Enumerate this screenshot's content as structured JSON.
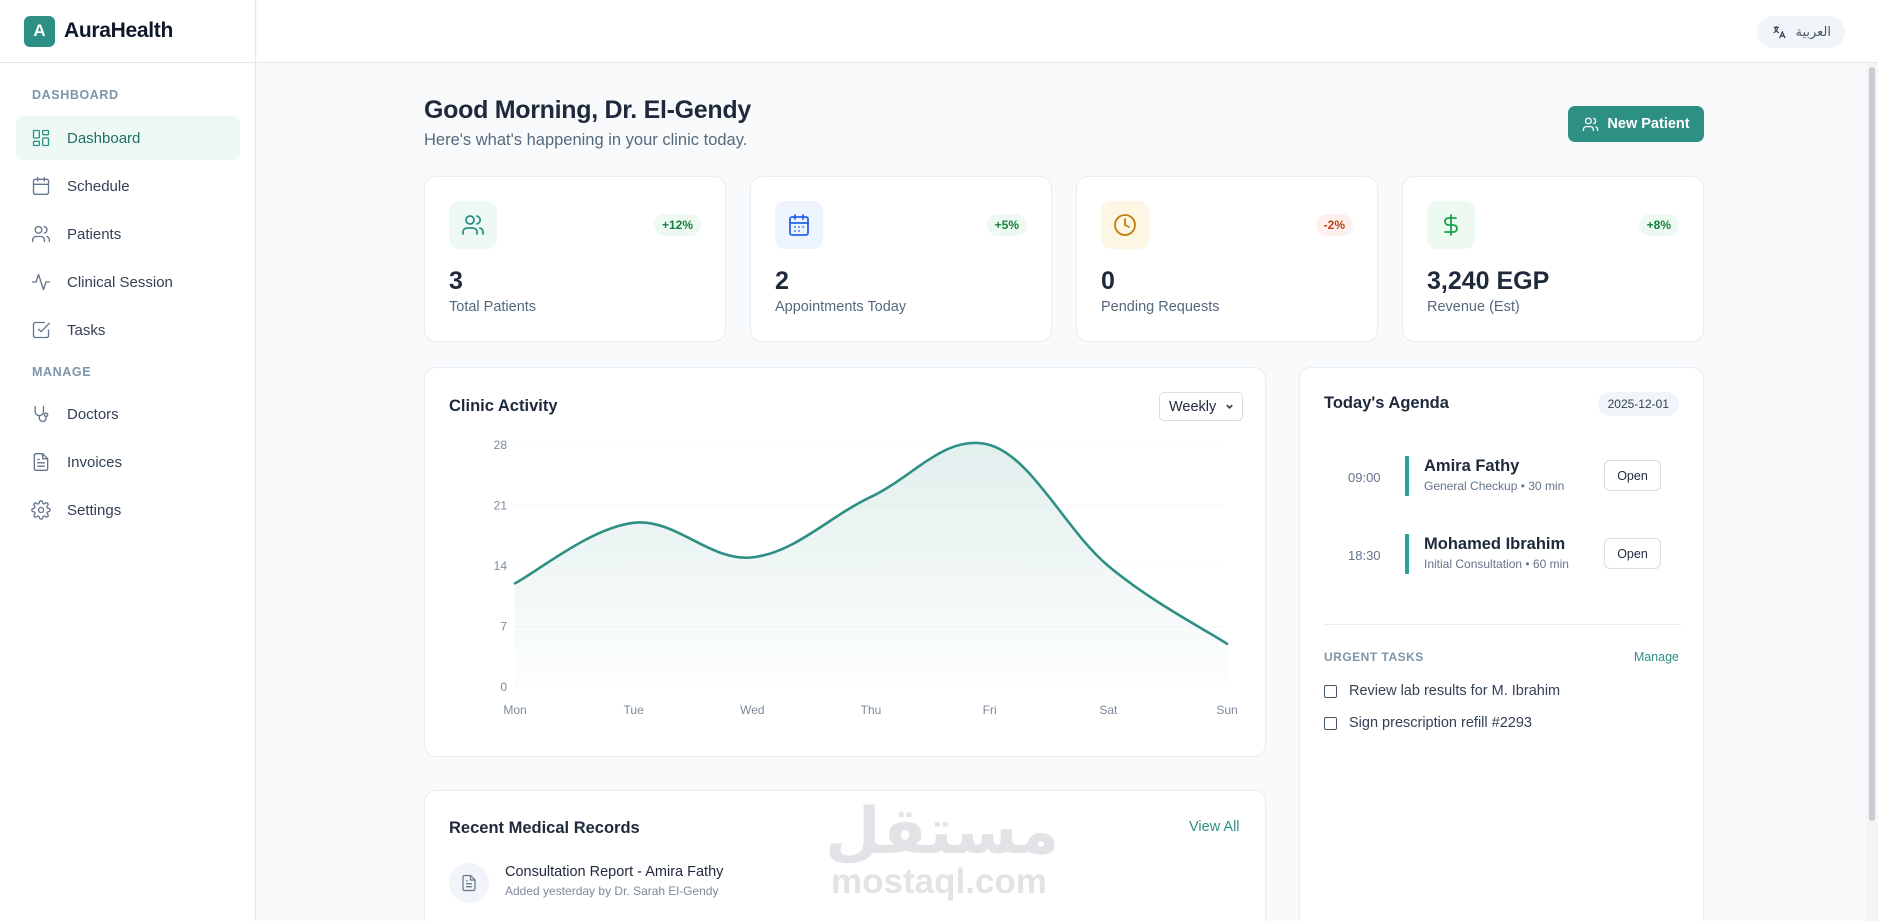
{
  "brand": {
    "logo_letter": "A",
    "name": "AuraHealth",
    "accent": "#2e8f84"
  },
  "sidebar": {
    "sections": [
      {
        "title": "DASHBOARD"
      },
      {
        "title": "MANAGE"
      }
    ],
    "items": [
      {
        "label": "Dashboard",
        "icon": "dashboard-grid-icon",
        "active": true
      },
      {
        "label": "Schedule",
        "icon": "calendar-icon"
      },
      {
        "label": "Patients",
        "icon": "users-icon"
      },
      {
        "label": "Clinical Session",
        "icon": "activity-icon"
      },
      {
        "label": "Tasks",
        "icon": "checkbox-icon"
      },
      {
        "label": "Doctors",
        "icon": "stethoscope-icon"
      },
      {
        "label": "Invoices",
        "icon": "file-text-icon"
      },
      {
        "label": "Settings",
        "icon": "gear-icon"
      }
    ]
  },
  "topbar": {
    "language_label": "العربية",
    "language_icon": "translate-icon"
  },
  "header": {
    "greeting": "Good Morning, Dr. El-Gendy",
    "subtitle": "Here's what's happening in your clinic today.",
    "new_patient_label": "New Patient"
  },
  "stats": [
    {
      "value": "3",
      "label": "Total Patients",
      "change": "+12%",
      "icon": "users-icon",
      "trend": "up"
    },
    {
      "value": "2",
      "label": "Appointments Today",
      "change": "+5%",
      "icon": "calendar-icon",
      "trend": "up"
    },
    {
      "value": "0",
      "label": "Pending Requests",
      "change": "-2%",
      "icon": "clock-icon",
      "trend": "down"
    },
    {
      "value": "3,240 EGP",
      "label": "Revenue (Est)",
      "change": "+8%",
      "icon": "dollar-icon",
      "trend": "up"
    }
  ],
  "activity": {
    "title": "Clinic Activity",
    "period": "Weekly"
  },
  "chart_data": {
    "type": "area",
    "title": "",
    "xlabel": "",
    "ylabel": "",
    "categories": [
      "Mon",
      "Tue",
      "Wed",
      "Thu",
      "Fri",
      "Sat",
      "Sun"
    ],
    "values": [
      12,
      19,
      15,
      22,
      28,
      14,
      5
    ],
    "yticks": [
      "0",
      "7",
      "14",
      "21",
      "28"
    ],
    "ylim": [
      0,
      28
    ],
    "grid": true,
    "color": "#2e8f84"
  },
  "records": {
    "title": "Recent Medical Records",
    "view_all_label": "View All",
    "items": [
      {
        "title": "Consultation Report - Amira Fathy",
        "subtitle": "Added yesterday by Dr. Sarah El-Gendy"
      }
    ]
  },
  "agenda": {
    "title": "Today's Agenda",
    "date": "2025-12-01",
    "appointments": [
      {
        "time": "09:00",
        "name": "Amira Fathy",
        "detail": "General Checkup • 30 min",
        "action": "Open"
      },
      {
        "time": "18:30",
        "name": "Mohamed Ibrahim",
        "detail": "Initial Consultation • 60 min",
        "action": "Open"
      }
    ],
    "tasks_title": "URGENT TASKS",
    "manage_label": "Manage",
    "tasks": [
      {
        "label": "Review lab results for M. Ibrahim"
      },
      {
        "label": "Sign prescription refill #2293"
      }
    ]
  },
  "watermark": {
    "arabic": "مستقل",
    "latin": "mostaql.com"
  }
}
